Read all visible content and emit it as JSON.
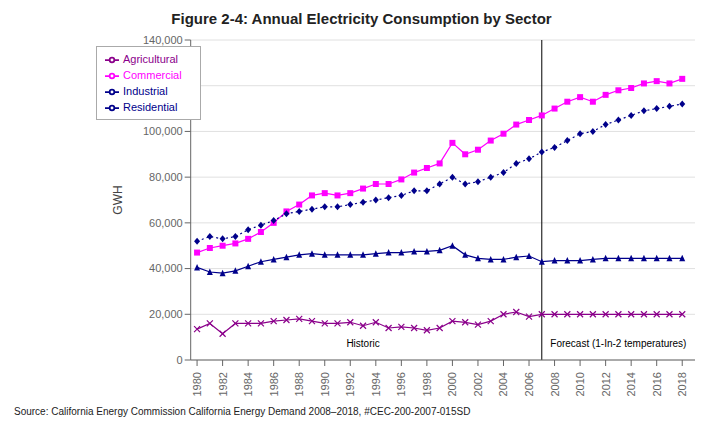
{
  "chart_data": {
    "type": "line",
    "title": "Figure 2-4: Annual Electricity Consumption by Sector",
    "ylabel": "GWH",
    "source": "Source: California Energy Commission California Energy Demand 2008–2018, #CEC-200-2007-015SD",
    "x": [
      1980,
      1981,
      1982,
      1983,
      1984,
      1985,
      1986,
      1987,
      1988,
      1989,
      1990,
      1991,
      1992,
      1993,
      1994,
      1995,
      1996,
      1997,
      1998,
      1999,
      2000,
      2001,
      2002,
      2003,
      2004,
      2005,
      2006,
      2007,
      2008,
      2009,
      2010,
      2011,
      2012,
      2013,
      2014,
      2015,
      2016,
      2017,
      2018
    ],
    "xlim": [
      1979.5,
      2019
    ],
    "xticks": [
      1980,
      1982,
      1984,
      1986,
      1988,
      1990,
      1992,
      1994,
      1996,
      1998,
      2000,
      2002,
      2004,
      2006,
      2008,
      2010,
      2012,
      2014,
      2016,
      2018
    ],
    "ylim": [
      0,
      140000
    ],
    "yticks": [
      0,
      {
        "value": 20000,
        "label": "20,000"
      },
      {
        "value": 40000,
        "label": "40,000"
      },
      {
        "value": 60000,
        "label": "60,000"
      },
      {
        "value": 80000,
        "label": "80,000"
      },
      {
        "value": 100000,
        "label": "100,000"
      },
      {
        "value": 120000,
        "label": "120,000"
      },
      {
        "value": 140000,
        "label": "140,000"
      }
    ],
    "grid": true,
    "legend": "upper left",
    "vlines": [
      2007
    ],
    "annotations": [
      {
        "text": "Historic",
        "x": 1993,
        "y": 3500
      },
      {
        "text": "Forecast (1-In-2 temperatures)",
        "x": 2013,
        "y": 3500
      }
    ],
    "series": [
      {
        "name": "Commercial",
        "color": "#FF00FF",
        "line_style": "solid",
        "marker": "square",
        "values": [
          47000,
          49000,
          50000,
          51000,
          53000,
          56000,
          60000,
          65000,
          68000,
          72000,
          73000,
          72000,
          73000,
          75000,
          77000,
          77000,
          79000,
          82000,
          84000,
          86000,
          95000,
          90000,
          92000,
          96000,
          99000,
          103000,
          105000,
          107000,
          110000,
          113000,
          115000,
          113000,
          116000,
          118000,
          119000,
          121000,
          122000,
          121000,
          123000
        ]
      },
      {
        "name": "Residential",
        "color": "#00008B",
        "line_style": "dotted",
        "marker": "diamond",
        "values": [
          52000,
          54000,
          53000,
          54000,
          57000,
          59000,
          61000,
          64000,
          65000,
          66000,
          67000,
          67000,
          68000,
          69000,
          70000,
          71000,
          72000,
          74000,
          74000,
          77000,
          80000,
          77000,
          78000,
          80000,
          82000,
          86000,
          88000,
          91000,
          93000,
          96000,
          99000,
          100000,
          103000,
          105000,
          107000,
          109000,
          110000,
          111000,
          112000
        ]
      },
      {
        "name": "Industrial",
        "color": "#00008B",
        "line_style": "solid",
        "marker": "triangle",
        "values": [
          40500,
          38500,
          38000,
          39000,
          41000,
          43000,
          44000,
          45000,
          46000,
          46500,
          46000,
          46000,
          46000,
          46000,
          46500,
          47000,
          47000,
          47500,
          47500,
          48000,
          50000,
          46000,
          44500,
          44000,
          44000,
          45000,
          45500,
          43000,
          43500,
          43500,
          43500,
          44000,
          44500,
          44500,
          44500,
          44500,
          44500,
          44500,
          44500
        ]
      },
      {
        "name": "Agricultural",
        "color": "#8B008B",
        "line_style": "solid",
        "marker": "x",
        "values": [
          13500,
          16000,
          11500,
          16000,
          16000,
          16000,
          17000,
          17500,
          18000,
          17000,
          16000,
          16000,
          16500,
          15000,
          16500,
          14000,
          14500,
          14000,
          13000,
          14000,
          17000,
          16500,
          15500,
          17000,
          20000,
          21000,
          19000,
          20000,
          20000,
          20000,
          20000,
          20000,
          20000,
          20000,
          20000,
          20000,
          20000,
          20000,
          20000
        ]
      }
    ]
  }
}
